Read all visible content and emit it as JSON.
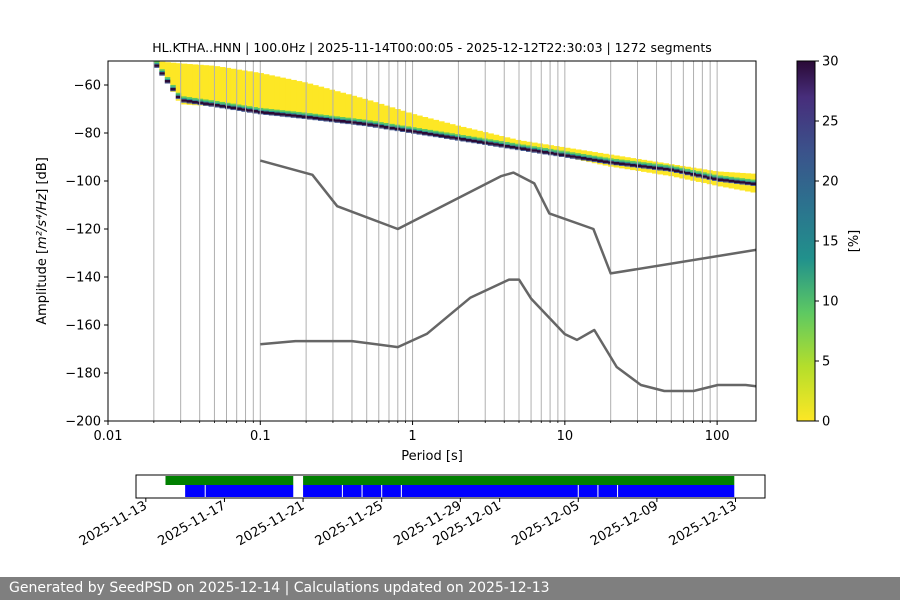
{
  "footer": {
    "text": "Generated by SeedPSD on 2025-12-14 | Calculations updated on 2025-12-13"
  },
  "colors": {
    "viridis": [
      "#fde725",
      "#5ec962",
      "#21918c",
      "#3b528b",
      "#440154",
      "#2a0a36"
    ],
    "noise_model": "#666666",
    "grid": "#b0b0b0",
    "availability_top": "#008000",
    "availability_bottom": "#0000ff"
  },
  "chart_data": [
    {
      "type": "heatmap",
      "title": "HL.KTHA..HNN | 100.0Hz | 2025-11-14T00:00:05 - 2025-12-12T22:30:03 | 1272 segments",
      "xlabel": "Period [s]",
      "ylabel_prefix": "Amplitude [",
      "ylabel_math": "m²/s⁴/Hz",
      "ylabel_suffix": "] [dB]",
      "x_scale": "log",
      "xlim": [
        0.01,
        180
      ],
      "ylim": [
        -200,
        -50
      ],
      "x_ticks": [
        {
          "value": 0.01,
          "label": "0.01"
        },
        {
          "value": 0.1,
          "label": "0.1"
        },
        {
          "value": 1,
          "label": "1"
        },
        {
          "value": 10,
          "label": "10"
        },
        {
          "value": 100,
          "label": "100"
        }
      ],
      "y_ticks": [
        -60,
        -80,
        -100,
        -120,
        -140,
        -160,
        -180,
        -200
      ],
      "grid": "vertical",
      "colorbar": {
        "label": "[%]",
        "range": [
          0,
          30
        ],
        "ticks": [
          0,
          5,
          10,
          15,
          20,
          25,
          30
        ]
      },
      "psd_band": {
        "period": [
          0.02,
          0.03,
          0.05,
          0.1,
          0.2,
          0.5,
          1,
          2,
          5,
          10,
          20,
          50,
          100,
          180
        ],
        "top_db": [
          -50,
          -51,
          -52,
          -55,
          -59,
          -66,
          -72,
          -77,
          -83,
          -86,
          -89,
          -93,
          -96,
          -97
        ],
        "mode_db": [
          -50,
          -66,
          -68,
          -71,
          -73,
          -76,
          -79,
          -82,
          -86,
          -89,
          -92,
          -95,
          -99,
          -101
        ],
        "bottom_db": [
          -50,
          -68,
          -69,
          -72,
          -74,
          -77,
          -80,
          -83,
          -87,
          -90,
          -94,
          -98,
          -102,
          -105
        ]
      },
      "nhnm": {
        "period": [
          0.1,
          0.22,
          0.32,
          0.8,
          3.8,
          4.6,
          6.3,
          7.9,
          15.4,
          20,
          180
        ],
        "db": [
          -91.5,
          -97.4,
          -110.5,
          -120,
          -98,
          -96.5,
          -101,
          -113.5,
          -120,
          -138.5,
          -128.7
        ]
      },
      "nlnm": {
        "period": [
          0.1,
          0.17,
          0.4,
          0.8,
          1.24,
          2.4,
          4.3,
          5,
          6,
          10,
          12,
          15.6,
          21.9,
          31.6,
          45,
          70,
          101,
          154,
          180
        ],
        "db": [
          -168,
          -166.7,
          -166.7,
          -169.2,
          -163.7,
          -148.6,
          -141.1,
          -141.1,
          -149,
          -163.8,
          -166.2,
          -162.1,
          -177.5,
          -185,
          -187.5,
          -187.5,
          -185,
          -185,
          -185.5
        ]
      }
    },
    {
      "type": "timeline",
      "x_ticks": [
        "2025-11-13",
        "2025-11-17",
        "2025-11-21",
        "2025-11-25",
        "2025-11-29",
        "2025-12-01",
        "2025-12-05",
        "2025-12-09",
        "2025-12-13"
      ],
      "xlim": [
        "2025-11-12T12:00",
        "2025-12-14T12:00"
      ],
      "top_bars": [
        {
          "start": "2025-11-14T00:00",
          "end": "2025-11-20T12:00"
        },
        {
          "start": "2025-11-21T00:00",
          "end": "2025-12-12T22:30"
        }
      ],
      "bottom_bars": [
        {
          "start": "2025-11-15T00:00",
          "end": "2025-11-20T12:00"
        },
        {
          "start": "2025-11-21T00:00",
          "end": "2025-12-12T22:30"
        }
      ],
      "gaps": [
        "2025-11-16T00:30",
        "2025-11-23T00:00",
        "2025-11-24T00:00",
        "2025-11-25T00:00",
        "2025-11-26T00:00",
        "2025-12-05T00:00",
        "2025-12-06T00:00",
        "2025-12-07T00:00"
      ]
    }
  ]
}
